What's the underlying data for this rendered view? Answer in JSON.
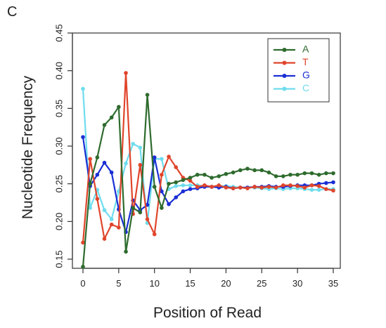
{
  "panel_label": "C",
  "colors": {
    "A": "#2e6b2e",
    "T": "#e0452b",
    "G": "#1a2fd4",
    "C": "#6fdcee"
  },
  "chart_data": {
    "type": "line",
    "title": "",
    "xlabel": "Position of Read",
    "ylabel": "Nucleotide Frequency",
    "xlim": [
      0,
      35
    ],
    "ylim": [
      0.14,
      0.45
    ],
    "xticks": [
      "0",
      "5",
      "10",
      "15",
      "20",
      "25",
      "30",
      "35"
    ],
    "yticks": [
      "0.15",
      "0.20",
      "0.25",
      "0.30",
      "0.35",
      "0.40",
      "0.45"
    ],
    "legend_position": "top-right",
    "grid": false,
    "x": [
      0,
      1,
      2,
      3,
      4,
      5,
      6,
      7,
      8,
      9,
      10,
      11,
      12,
      13,
      14,
      15,
      16,
      17,
      18,
      19,
      20,
      21,
      22,
      23,
      24,
      25,
      26,
      27,
      28,
      29,
      30,
      31,
      32,
      33,
      34,
      35
    ],
    "series": [
      {
        "name": "A",
        "values": [
          0.14,
          0.25,
          0.285,
          0.328,
          0.338,
          0.352,
          0.16,
          0.218,
          0.212,
          0.368,
          0.246,
          0.218,
          0.25,
          0.252,
          0.255,
          0.258,
          0.262,
          0.262,
          0.258,
          0.26,
          0.263,
          0.265,
          0.268,
          0.27,
          0.268,
          0.268,
          0.265,
          0.26,
          0.26,
          0.262,
          0.262,
          0.264,
          0.264,
          0.262,
          0.264,
          0.264
        ]
      },
      {
        "name": "T",
        "values": [
          0.172,
          0.283,
          0.23,
          0.177,
          0.196,
          0.192,
          0.397,
          0.21,
          0.275,
          0.203,
          0.183,
          0.262,
          0.286,
          0.272,
          0.258,
          0.254,
          0.246,
          0.248,
          0.246,
          0.248,
          0.245,
          0.244,
          0.245,
          0.244,
          0.246,
          0.245,
          0.246,
          0.245,
          0.248,
          0.248,
          0.247,
          0.245,
          0.248,
          0.247,
          0.243,
          0.241
        ]
      },
      {
        "name": "G",
        "values": [
          0.312,
          0.247,
          0.262,
          0.278,
          0.265,
          0.216,
          0.186,
          0.228,
          0.215,
          0.222,
          0.285,
          0.24,
          0.223,
          0.232,
          0.24,
          0.243,
          0.244,
          0.246,
          0.246,
          0.245,
          0.246,
          0.244,
          0.245,
          0.245,
          0.246,
          0.246,
          0.247,
          0.246,
          0.246,
          0.247,
          0.248,
          0.248,
          0.248,
          0.25,
          0.251,
          0.252
        ]
      },
      {
        "name": "C",
        "values": [
          0.376,
          0.218,
          0.242,
          0.215,
          0.203,
          0.24,
          0.277,
          0.303,
          0.298,
          0.198,
          0.283,
          0.283,
          0.243,
          0.247,
          0.248,
          0.248,
          0.248,
          0.247,
          0.246,
          0.247,
          0.247,
          0.246,
          0.245,
          0.245,
          0.245,
          0.244,
          0.243,
          0.244,
          0.243,
          0.244,
          0.244,
          0.243,
          0.242,
          0.242,
          0.243,
          0.243
        ]
      }
    ]
  }
}
